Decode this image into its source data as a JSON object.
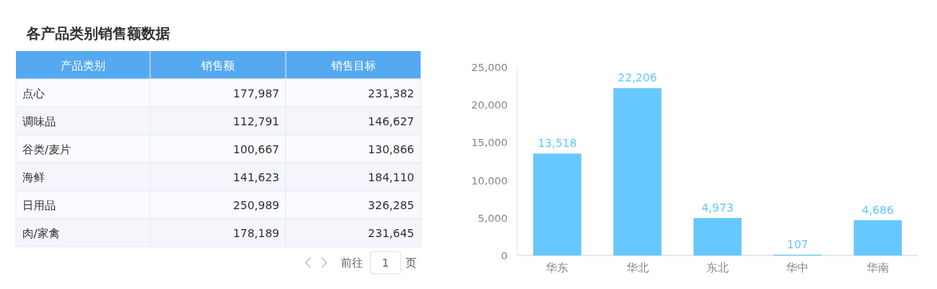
{
  "chart_data": [
    {
      "type": "other",
      "title": "各产品类别销售额数据",
      "xlabel": "产品类别",
      "categories": [
        "点心",
        "调味品",
        "谷类/麦片",
        "海鲜",
        "日用品",
        "肉/家禽"
      ],
      "series": [
        {
          "name": "销售额",
          "colors": [
            "#fafbfe",
            "#f4f6fb",
            "#fafbfe",
            "#f4f6fb",
            "#fafbfe",
            "#f4f6fb"
          ],
          "values": [
            177987,
            112791,
            100667,
            141623,
            250989,
            178189
          ],
          "value_labels": [
            "177,987",
            "112,791",
            "100,667",
            "141,623",
            "250,989",
            "178,189"
          ]
        },
        {
          "name": "销售目标",
          "colors": [
            "#fafbfe",
            "#f4f6fb",
            "#fafbfe",
            "#f4f6fb",
            "#fafbfe",
            "#f4f6fb"
          ],
          "values": [
            231382,
            146627,
            130866,
            184110,
            326285,
            231645
          ],
          "value_labels": [
            "231,382",
            "146,627",
            "130,866",
            "184,110",
            "326,285",
            "231,645"
          ]
        }
      ],
      "annotations": [
        "前往",
        "1",
        "页"
      ]
    },
    {
      "type": "bar",
      "categories": [
        "华东",
        "华北",
        "东北",
        "华中",
        "华南"
      ],
      "values": [
        13518,
        22206,
        4973,
        107,
        4686
      ],
      "value_labels": [
        "13,518",
        "22,206",
        "4,973",
        "107",
        "4,686"
      ],
      "color": "#66c8ff",
      "ylim": [
        0,
        25000
      ],
      "yticks": [
        0,
        {
          "value": 5000,
          "label": "5,000"
        },
        {
          "value": 10000,
          "label": "10,000"
        },
        {
          "value": 15000,
          "label": "15,000"
        },
        {
          "value": 20000,
          "label": "20,000"
        },
        {
          "value": 25000,
          "label": "25,000"
        }
      ]
    }
  ]
}
